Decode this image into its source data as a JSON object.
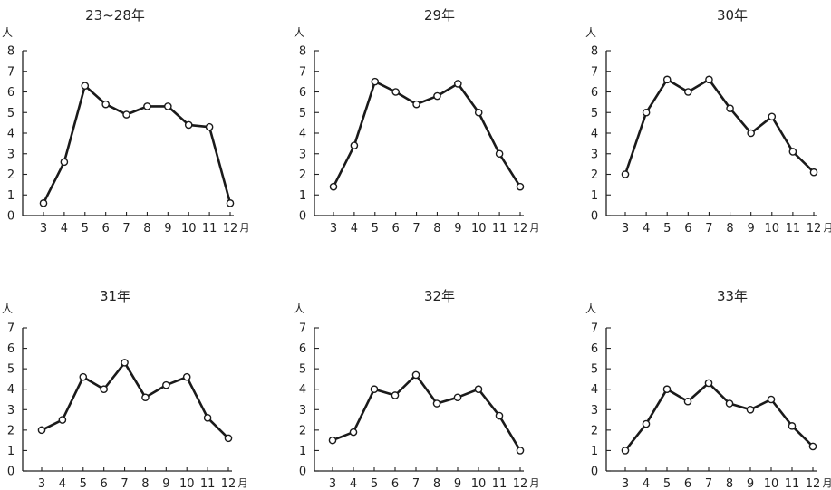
{
  "colors": {
    "line": "#1a1a1a",
    "marker_fill": "#ffffff",
    "axis": "#222222",
    "text": "#222222",
    "background": "#ffffff"
  },
  "chart_data": [
    {
      "type": "line",
      "title": "23~28年",
      "ylabel": "人",
      "xlabel": "",
      "x_unit": "月",
      "categories": [
        "3",
        "4",
        "5",
        "6",
        "7",
        "8",
        "9",
        "10",
        "11",
        "12"
      ],
      "series": [
        {
          "values": [
            0.6,
            2.6,
            6.3,
            5.4,
            4.9,
            5.3,
            5.3,
            4.4,
            4.3,
            0.6
          ]
        }
      ],
      "ylim": [
        0,
        8
      ],
      "yticks": [
        "0",
        "1",
        "2",
        "3",
        "4",
        "5",
        "6",
        "7",
        "8"
      ],
      "grid": false,
      "markers": "open-circle"
    },
    {
      "type": "line",
      "title": "29年",
      "ylabel": "人",
      "xlabel": "",
      "x_unit": "月",
      "categories": [
        "3",
        "4",
        "5",
        "6",
        "7",
        "8",
        "9",
        "10",
        "11",
        "12"
      ],
      "series": [
        {
          "values": [
            1.4,
            3.4,
            6.5,
            6.0,
            5.4,
            5.8,
            6.4,
            5.0,
            3.0,
            1.4
          ]
        }
      ],
      "ylim": [
        0,
        8
      ],
      "yticks": [
        "0",
        "1",
        "2",
        "3",
        "4",
        "5",
        "6",
        "7",
        "8"
      ],
      "grid": false,
      "markers": "open-circle"
    },
    {
      "type": "line",
      "title": "30年",
      "ylabel": "人",
      "xlabel": "",
      "x_unit": "月",
      "categories": [
        "3",
        "4",
        "5",
        "6",
        "7",
        "8",
        "9",
        "10",
        "11",
        "12"
      ],
      "series": [
        {
          "values": [
            2.0,
            5.0,
            6.6,
            6.0,
            6.6,
            5.2,
            4.0,
            4.8,
            3.1,
            2.1
          ]
        }
      ],
      "ylim": [
        0,
        8
      ],
      "yticks": [
        "0",
        "1",
        "2",
        "3",
        "4",
        "5",
        "6",
        "7",
        "8"
      ],
      "grid": false,
      "markers": "open-circle"
    },
    {
      "type": "line",
      "title": "31年",
      "ylabel": "人",
      "xlabel": "",
      "x_unit": "月",
      "categories": [
        "3",
        "4",
        "5",
        "6",
        "7",
        "8",
        "9",
        "10",
        "11",
        "12"
      ],
      "series": [
        {
          "values": [
            2.0,
            2.5,
            4.6,
            4.0,
            5.3,
            3.6,
            4.2,
            4.6,
            2.6,
            1.6
          ]
        }
      ],
      "ylim": [
        0,
        7
      ],
      "yticks": [
        "0",
        "1",
        "2",
        "3",
        "4",
        "5",
        "6",
        "7"
      ],
      "grid": false,
      "markers": "open-circle"
    },
    {
      "type": "line",
      "title": "32年",
      "ylabel": "人",
      "xlabel": "",
      "x_unit": "月",
      "categories": [
        "3",
        "4",
        "5",
        "6",
        "7",
        "8",
        "9",
        "10",
        "11",
        "12"
      ],
      "series": [
        {
          "values": [
            1.5,
            1.9,
            4.0,
            3.7,
            4.7,
            3.3,
            3.6,
            4.0,
            2.7,
            1.0
          ]
        }
      ],
      "ylim": [
        0,
        7
      ],
      "yticks": [
        "0",
        "1",
        "2",
        "3",
        "4",
        "5",
        "6",
        "7"
      ],
      "grid": false,
      "markers": "open-circle"
    },
    {
      "type": "line",
      "title": "33年",
      "ylabel": "人",
      "xlabel": "",
      "x_unit": "月",
      "categories": [
        "3",
        "4",
        "5",
        "6",
        "7",
        "8",
        "9",
        "10",
        "11",
        "12"
      ],
      "series": [
        {
          "values": [
            1.0,
            2.3,
            4.0,
            3.4,
            4.3,
            3.3,
            3.0,
            3.5,
            2.2,
            1.2
          ]
        }
      ],
      "ylim": [
        0,
        7
      ],
      "yticks": [
        "0",
        "1",
        "2",
        "3",
        "4",
        "5",
        "6",
        "7"
      ],
      "grid": false,
      "markers": "open-circle"
    }
  ]
}
